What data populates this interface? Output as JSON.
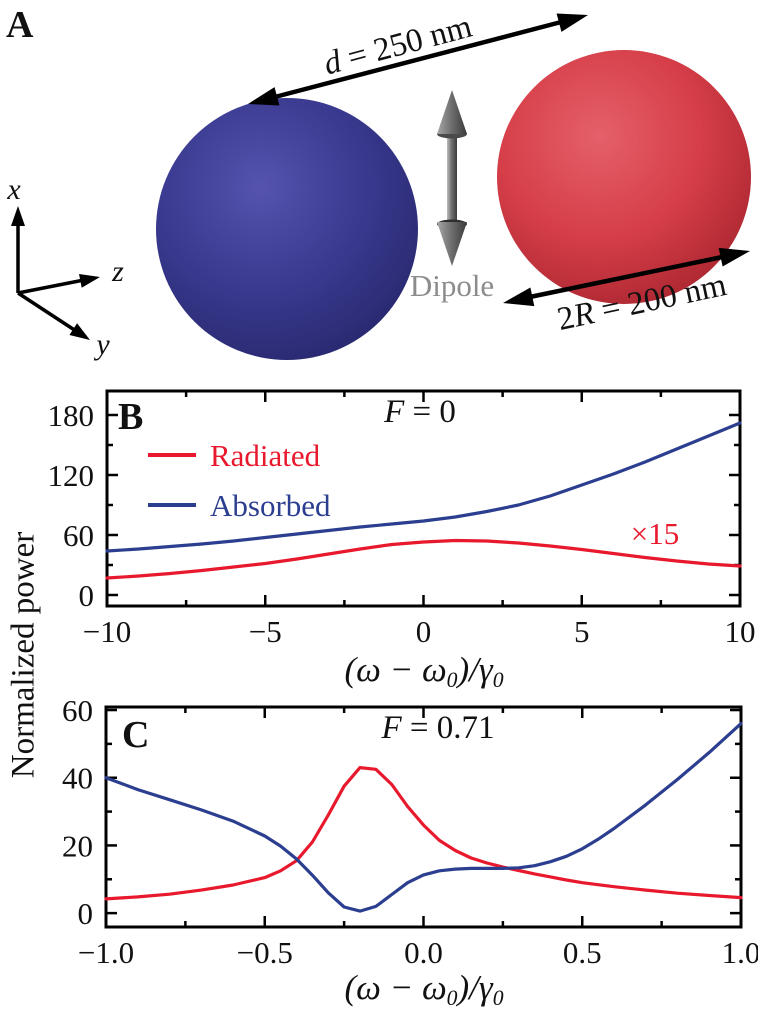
{
  "figure": {
    "panel_a": {
      "label": "A",
      "distance_label": {
        "var": "d",
        "rest": " = 250 nm"
      },
      "diameter_label": {
        "pre": "2",
        "var": "R",
        "rest": " = 200 nm"
      },
      "dipole_label": "Dipole",
      "axis_labels": {
        "x": "x",
        "y": "y",
        "z": "z"
      },
      "colors": {
        "sphere_left_light": "#5553ae",
        "sphere_left_base": "#39398f",
        "sphere_left_dark": "#26266b",
        "sphere_right_light": "#e4606a",
        "sphere_right_base": "#d63e48",
        "sphere_right_dark": "#a6242e",
        "dipole_gray": "#6f6f6f",
        "dipole_text": "#8c8c8c",
        "arrow_black": "#000000"
      }
    },
    "shared_y_axis_label": "Normalized power"
  },
  "chart_data": [
    {
      "panel_label": "B",
      "type": "line",
      "title_var": "F",
      "title_rest": " = 0",
      "xlabel_parts": {
        "a": "(ω − ω",
        "s1": "0",
        "b": ")/γ",
        "s2": "0"
      },
      "xlim": [
        -10,
        10
      ],
      "ylim": [
        0,
        180
      ],
      "grid": false,
      "legend_position": "upper-left-inside",
      "xticks": {
        "major": [
          -10,
          -5,
          0,
          5,
          10
        ],
        "minor": [
          -7.5,
          -2.5,
          2.5,
          7.5
        ],
        "labels": [
          "−10",
          "−5",
          "0",
          "5",
          "10"
        ]
      },
      "yticks": {
        "major": [
          0,
          60,
          120,
          180
        ],
        "minor": [
          30,
          90,
          150
        ],
        "labels": [
          "0",
          "60",
          "120",
          "180"
        ]
      },
      "legend": [
        {
          "label": "Radiated",
          "color": "#e8192d"
        },
        {
          "label": "Absorbed",
          "color": "#2c3e8f"
        }
      ],
      "annotation": "×15",
      "annotation_color": "#e8192d",
      "series": [
        {
          "name": "Radiated",
          "color": "#e8192d",
          "scale_note": "×15",
          "x": [
            -10,
            -9,
            -8,
            -7,
            -6,
            -5,
            -4,
            -3,
            -2,
            -1,
            0,
            1,
            2,
            3,
            4,
            5,
            6,
            7,
            8,
            9,
            10
          ],
          "y": [
            17,
            19,
            21.5,
            24.5,
            28,
            31.5,
            36,
            41,
            46,
            50.5,
            53,
            54.5,
            54,
            52,
            49,
            45.5,
            41.5,
            37.5,
            34,
            31,
            29
          ]
        },
        {
          "name": "Absorbed",
          "color": "#2c3e8f",
          "x": [
            -10,
            -9,
            -8,
            -7,
            -6,
            -5,
            -4,
            -3,
            -2,
            -1,
            0,
            1,
            2,
            3,
            4,
            5,
            6,
            7,
            8,
            9,
            10
          ],
          "y": [
            44,
            46,
            48.5,
            51,
            54,
            57.5,
            61,
            64.5,
            68,
            71,
            74,
            78,
            83.5,
            90,
            99,
            110,
            121,
            133,
            146,
            159,
            172
          ]
        }
      ]
    },
    {
      "panel_label": "C",
      "type": "line",
      "title_var": "F",
      "title_rest": " = 0.71",
      "xlabel_parts": {
        "a": "(ω − ω",
        "s1": "0",
        "b": ")/γ",
        "s2": "0"
      },
      "xlim": [
        -1,
        1
      ],
      "ylim": [
        0,
        60
      ],
      "grid": false,
      "xticks": {
        "major": [
          -1,
          -0.5,
          0,
          0.5,
          1
        ],
        "minor": [
          -0.75,
          -0.25,
          0.25,
          0.75
        ],
        "labels": [
          "−1.0",
          "−0.5",
          "0.0",
          "0.5",
          "1.0"
        ]
      },
      "yticks": {
        "major": [
          0,
          20,
          40,
          60
        ],
        "minor": [
          10,
          30,
          50
        ],
        "labels": [
          "0",
          "20",
          "40",
          "60"
        ]
      },
      "series": [
        {
          "name": "Radiated",
          "color": "#e8192d",
          "x": [
            -1,
            -0.9,
            -0.8,
            -0.7,
            -0.6,
            -0.5,
            -0.45,
            -0.4,
            -0.35,
            -0.3,
            -0.25,
            -0.2,
            -0.15,
            -0.1,
            -0.05,
            0,
            0.05,
            0.1,
            0.15,
            0.2,
            0.25,
            0.3,
            0.35,
            0.4,
            0.45,
            0.5,
            0.6,
            0.7,
            0.8,
            0.9,
            1
          ],
          "y": [
            4.2,
            4.8,
            5.6,
            6.8,
            8.3,
            10.5,
            12.5,
            15.5,
            21,
            29,
            37.5,
            43,
            42.5,
            38,
            31.5,
            26,
            21.5,
            18.5,
            16.3,
            14.8,
            13.6,
            12.6,
            11.6,
            10.7,
            9.8,
            9,
            7.8,
            6.8,
            5.9,
            5.2,
            4.6
          ]
        },
        {
          "name": "Absorbed",
          "color": "#2c3e8f",
          "x": [
            -1,
            -0.9,
            -0.8,
            -0.7,
            -0.6,
            -0.5,
            -0.45,
            -0.4,
            -0.35,
            -0.3,
            -0.25,
            -0.2,
            -0.15,
            -0.1,
            -0.05,
            0,
            0.05,
            0.1,
            0.15,
            0.2,
            0.25,
            0.3,
            0.35,
            0.4,
            0.45,
            0.5,
            0.55,
            0.6,
            0.7,
            0.8,
            0.9,
            1
          ],
          "y": [
            40,
            36.5,
            33.5,
            30.5,
            27.2,
            22.8,
            19.8,
            16,
            11.2,
            6,
            1.8,
            0.6,
            2,
            5.5,
            9,
            11.3,
            12.5,
            13,
            13.2,
            13.2,
            13.2,
            13.4,
            14,
            15.2,
            16.8,
            19,
            21.8,
            25,
            32,
            39.5,
            47.5,
            56
          ]
        }
      ]
    }
  ]
}
